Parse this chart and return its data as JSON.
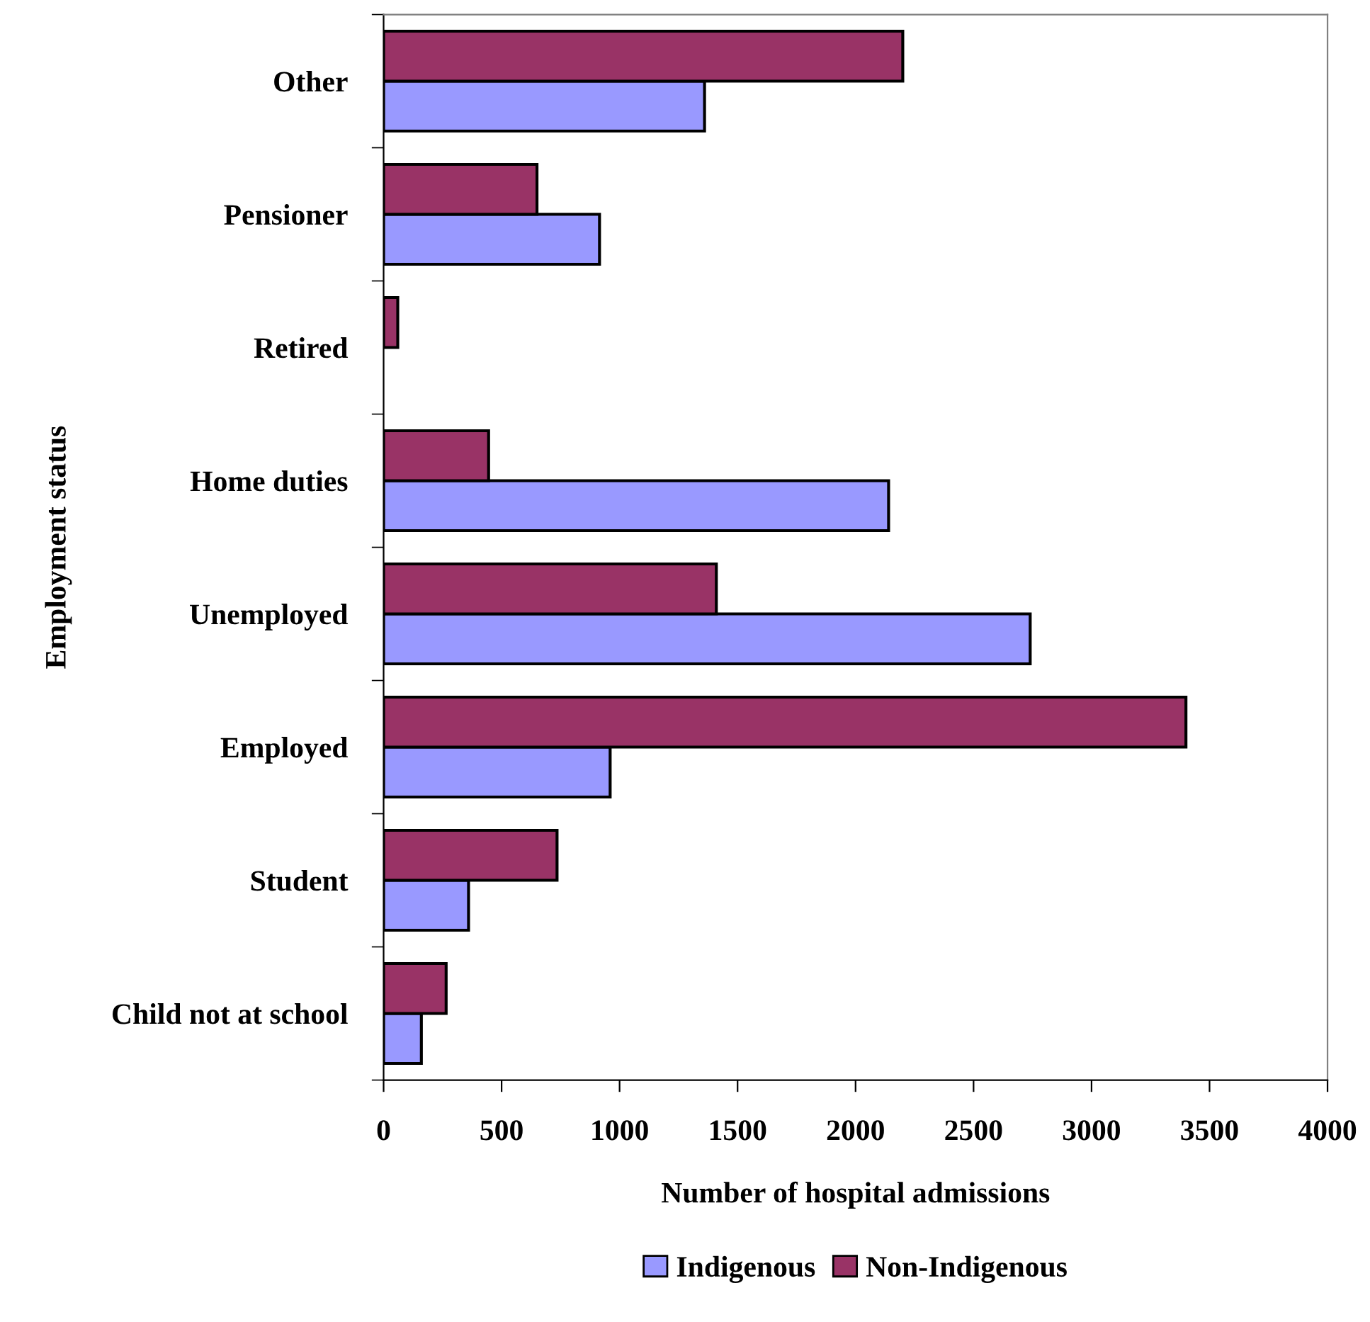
{
  "chart_data": {
    "type": "bar",
    "orientation": "horizontal",
    "xlabel": "Number of hospital admissions",
    "ylabel": "Employment status",
    "categories": [
      "Other",
      "Pensioner",
      "Retired",
      "Home duties",
      "Unemployed",
      "Employed",
      "Student",
      "Child not at school"
    ],
    "series": [
      {
        "name": "Indigenous",
        "color": "#9999ff",
        "values": [
          1360,
          915,
          null,
          2140,
          2740,
          960,
          360,
          160
        ]
      },
      {
        "name": "Non-Indigenous",
        "color": "#993366",
        "values": [
          2200,
          650,
          60,
          445,
          1410,
          3400,
          735,
          265
        ]
      }
    ],
    "xlim": [
      0,
      4000
    ],
    "xticks": [
      0,
      500,
      1000,
      1500,
      2000,
      2500,
      3000,
      3500,
      4000
    ],
    "grid": false,
    "legend": "bottom"
  }
}
